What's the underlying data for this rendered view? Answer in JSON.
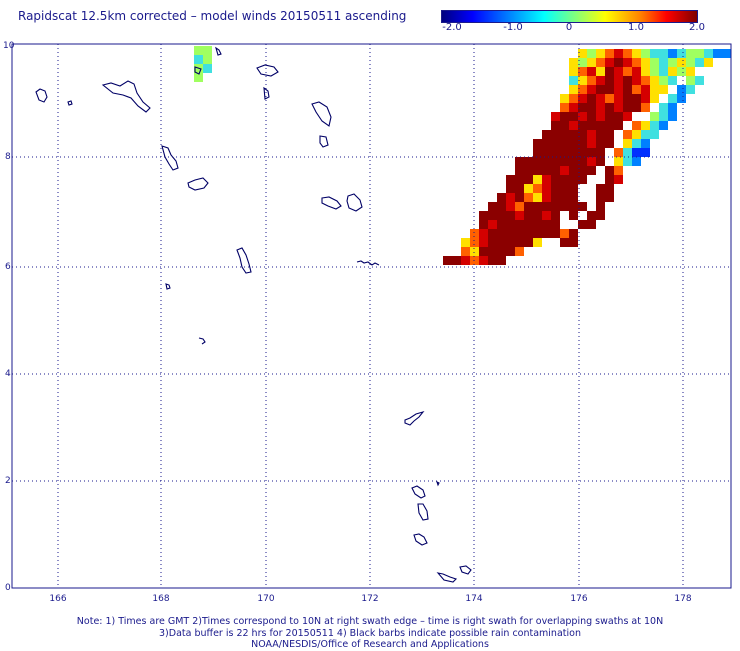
{
  "title": "Rapidscat 12.5km corrected – model winds 20150511 ascending",
  "colorbar": {
    "ticks": [
      "-2.0",
      "-1.0",
      "0",
      "1.0",
      "2.0"
    ],
    "range": [
      -2.0,
      2.0
    ]
  },
  "axes": {
    "x_ticks": [
      "166",
      "168",
      "170",
      "172",
      "174",
      "176",
      "178"
    ],
    "y_ticks": [
      "0",
      "2",
      "4",
      "6",
      "8",
      "10"
    ]
  },
  "notes": {
    "line1": "Note: 1) Times are GMT 2)Times correspond to 10N at right swath edge – time is right swath for overlapping swaths at 10N",
    "line2": "3)Data buffer is 22 hrs for 20150511 4) Black barbs indicate possible rain contamination",
    "line3": "NOAA/NESDIS/Office of Research and Applications"
  },
  "colors": {
    "frame": "#1a1a8c",
    "grid": "#1a1a8c",
    "coast": "#000066",
    "dark_red": "#8b0000"
  }
}
